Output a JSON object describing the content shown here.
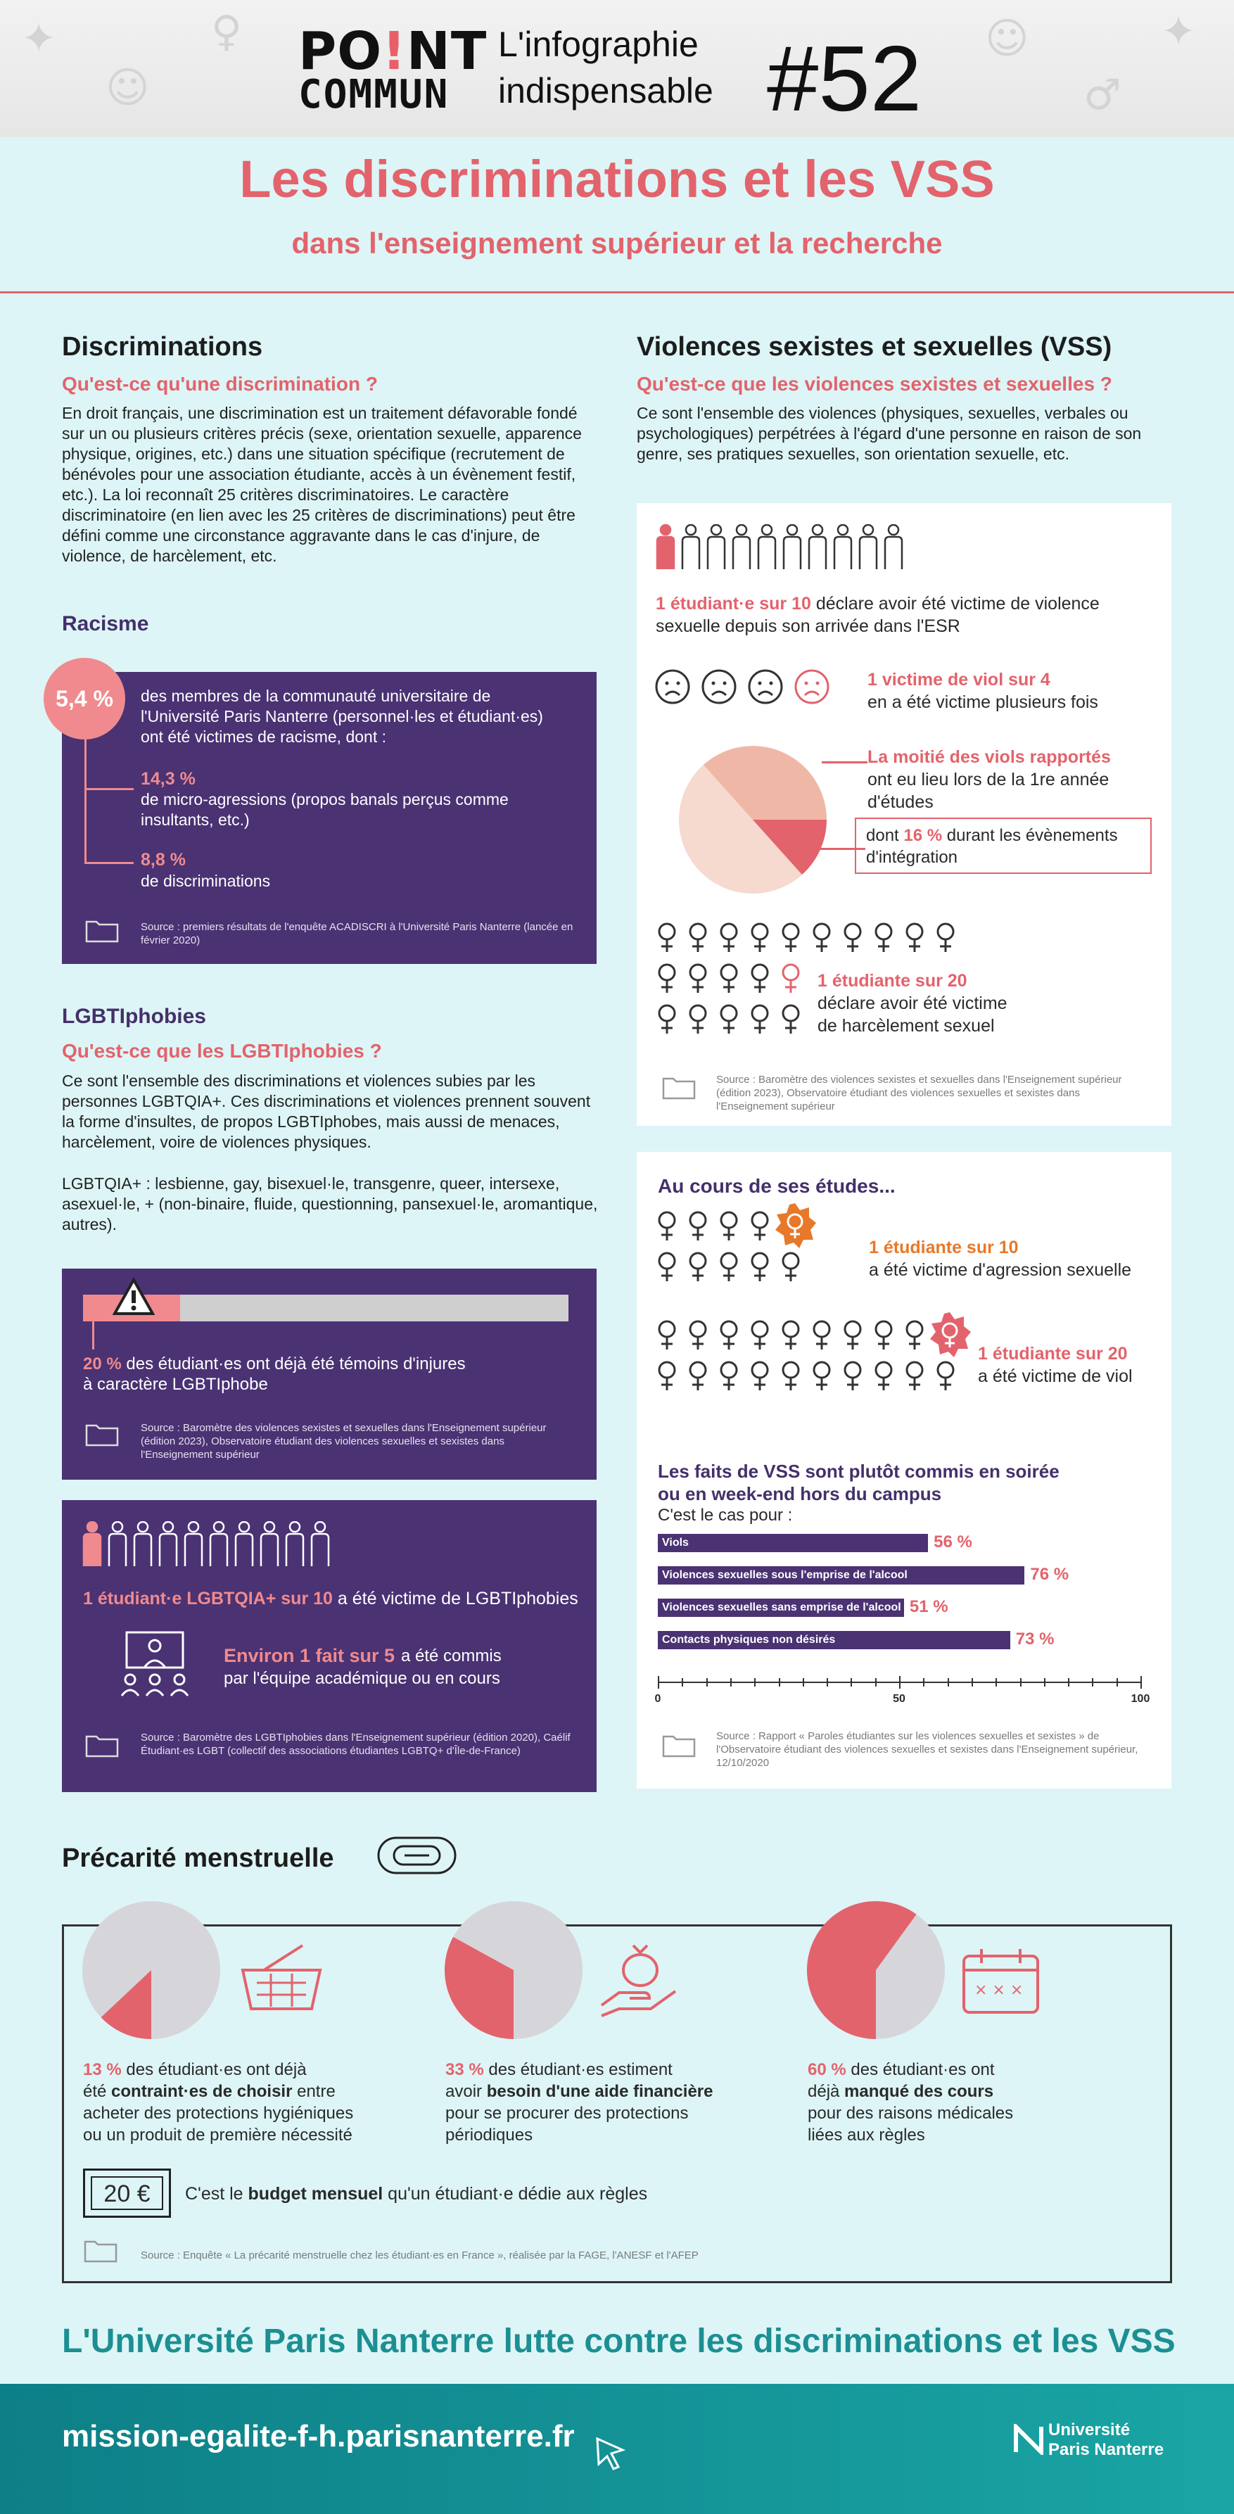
{
  "header": {
    "logo_line1_a": "PO",
    "logo_line1_bang": "!",
    "logo_line1_b": "NT",
    "logo_line2": "COMMUN",
    "sub_line1": "L'infographie",
    "sub_line2": "indispensable",
    "issue": "#52"
  },
  "title": {
    "main": "Les discriminations et les VSS",
    "sub": "dans l'enseignement supérieur et la recherche"
  },
  "discriminations": {
    "heading": "Discriminations",
    "question": "Qu'est-ce qu'une discrimination ?",
    "text": "En droit français, une discrimination est un traitement défavorable fondé sur un ou plusieurs critères précis (sexe, orientation sexuelle, apparence physique, origines, etc.) dans une situation spécifique (recrutement de bénévoles pour une association étudiante, accès à un évènement festif, etc.). La loi reconnaît 25 critères discriminatoires. Le caractère discriminatoire (en lien avec les 25 critères de discriminations) peut être défini comme une circonstance aggravante dans le cas d'injure, de violence, de harcèlement, etc."
  },
  "racisme": {
    "heading": "Racisme",
    "badge": "5,4 %",
    "intro": "des membres de la communauté universitaire de l'Université Paris Nanterre (personnel·les et étudiant·es) ont été victimes de racisme, dont :",
    "stat1_value": "14,3 %",
    "stat1_text": "de micro-agressions (propos banals perçus comme insultants, etc.)",
    "stat2_value": "8,8 %",
    "stat2_text": "de discriminations",
    "source": "Source : premiers résultats de l'enquête ACADISCRI à l'Université Paris Nanterre (lancée en février 2020)"
  },
  "lgbt": {
    "heading": "LGBTIphobies",
    "question": "Qu'est-ce que les LGBTIphobies ?",
    "text1": "Ce sont l'ensemble des discriminations et violences subies par les personnes LGBTQIA+. Ces discriminations et violences prennent souvent la forme d'insultes, de propos LGBTIphobes, mais aussi de menaces, harcèlement, voire de violences physiques.",
    "text2": "LGBTQIA+ : lesbienne, gay, bisexuel·le, transgenre, queer, intersexe, asexuel·le, + (non-binaire, fluide, questionning, pansexuel·le, aromantique, autres).",
    "witness_progress": 0.2,
    "witness_value": "20 %",
    "witness_text": "des étudiant·es ont déjà été témoins d'injures",
    "witness_text2": "à caractère LGBTIphobe",
    "source1": "Source : Baromètre des violences sexistes et sexuelles dans l'Enseignement supérieur (édition 2023), Observatoire étudiant des violences sexuelles et sexistes dans l'Enseignement supérieur",
    "victim_value": "1 étudiant·e LGBTQIA+ sur 10",
    "victim_text": "a été victime de LGBTIphobies",
    "academic_value": "Environ 1 fait sur 5",
    "academic_text": "a été commis",
    "academic_text2": "par l'équipe académique ou en cours",
    "source2": "Source : Baromètre des LGBTIphobies dans l'Enseignement supérieur (édition 2020), Caélif Étudiant·es LGBT (collectif des associations étudiantes LGBTQ+ d'Île-de-France)"
  },
  "vss": {
    "heading": "Violences sexistes et sexuelles (VSS)",
    "question": "Qu'est-ce que les violences sexistes et sexuelles ?",
    "text": "Ce sont l'ensemble des violences (physiques, sexuelles, verbales ou psychologiques) perpétrées à l'égard d'une personne en raison de son genre, ses pratiques sexuelles, son orientation sexuelle, etc.",
    "stat1_value": "1 étudiant·e sur 10",
    "stat1_text": "déclare avoir été victime de violence",
    "stat1_text2": "sexuelle depuis son arrivée dans l'ESR",
    "stat2_value": "1 victime de viol sur 4",
    "stat2_text": "en a été victime plusieurs fois",
    "stat3_value": "La moitié des viols rapportés",
    "stat3_text": "ont eu lieu lors de la 1re année",
    "stat3_text2": "d'études",
    "stat3_box_pre": "dont ",
    "stat3_box_value": "16 %",
    "stat3_box_post": " durant les évènements",
    "stat3_box_line2": "d'intégration",
    "stat4_value": "1 étudiante sur 20",
    "stat4_text": "déclare avoir été victime",
    "stat4_text2": "de harcèlement sexuel",
    "source": "Source : Baromètre des violences sexistes et sexuelles dans l'Enseignement supérieur (édition 2023), Observatoire étudiant des violences sexuelles et sexistes dans l'Enseignement supérieur"
  },
  "etudes": {
    "heading": "Au cours de ses études...",
    "stat1_value": "1 étudiante sur 10",
    "stat1_text": "a été victime d'agression sexuelle",
    "stat2_value": "1 étudiante sur 20",
    "stat2_text": "a été victime de viol",
    "bars_title1": "Les faits de VSS sont plutôt commis en soirée",
    "bars_title2": "ou en week-end hors du campus",
    "bars_sub": "C'est le cas pour :",
    "source": "Source : Rapport « Paroles étudiantes sur les violences sexuelles et sexistes » de l'Observatoire étudiant des violences sexuelles et sexistes dans l'Enseignement supérieur, 12/10/2020"
  },
  "chart_data": {
    "type": "bar",
    "categories": [
      "Viols",
      "Violences sexuelles sous l'emprise de l'alcool",
      "Violences sexuelles sans emprise de l'alcool",
      "Contacts physiques non désirés"
    ],
    "values": [
      56,
      76,
      51,
      73
    ],
    "value_labels": [
      "56 %",
      "76 %",
      "51 %",
      "73 %"
    ],
    "xlim": [
      0,
      100
    ],
    "ticks": [
      "0",
      "50",
      "100"
    ],
    "colors": {
      "bar": "#4a3273",
      "label": "#e3636c"
    }
  },
  "precarite": {
    "heading": "Précarité menstruelle",
    "pie1_fraction": 0.13,
    "pie1_value": "13 %",
    "pie1_text_a": " des étudiant·es ont déjà",
    "pie1_text_b": "été ",
    "pie1_bold": "contraint·es de choisir",
    "pie1_text_c": " entre",
    "pie1_text_d": "acheter des protections hygiéniques",
    "pie1_text_e": "ou un produit de première nécessité",
    "pie2_fraction": 0.33,
    "pie2_value": "33 %",
    "pie2_text_a": " des étudiant·es estiment",
    "pie2_text_b": "avoir ",
    "pie2_bold": "besoin d'une aide financière",
    "pie2_text_c": "pour se procurer des protections",
    "pie2_text_d": "périodiques",
    "pie3_fraction": 0.6,
    "pie3_value": "60 %",
    "pie3_text_a": " des étudiant·es ont",
    "pie3_text_b": "déjà ",
    "pie3_bold": "manqué des cours",
    "pie3_text_c": "pour des raisons médicales",
    "pie3_text_d": "liées aux règles",
    "budget_value": "20 €",
    "budget_pre": "C'est le ",
    "budget_bold": "budget mensuel",
    "budget_post": " qu'un étudiant·e dédie aux règles",
    "source": "Source : Enquête « La précarité menstruelle chez les étudiant·es en France », réalisée par la FAGE, l'ANESF et l'AFEP"
  },
  "footer": {
    "slogan": "L'Université Paris Nanterre lutte contre les discriminations et les VSS",
    "url": "mission-egalite-f-h.parisnanterre.fr",
    "univ_line1": "Université",
    "univ_line2": "Paris Nanterre"
  },
  "colors": {
    "background": "#ddf5f6",
    "accent": "#e3636c",
    "purple": "#4a3273",
    "teal": "#1c8f93",
    "orange": "#e8782a"
  }
}
